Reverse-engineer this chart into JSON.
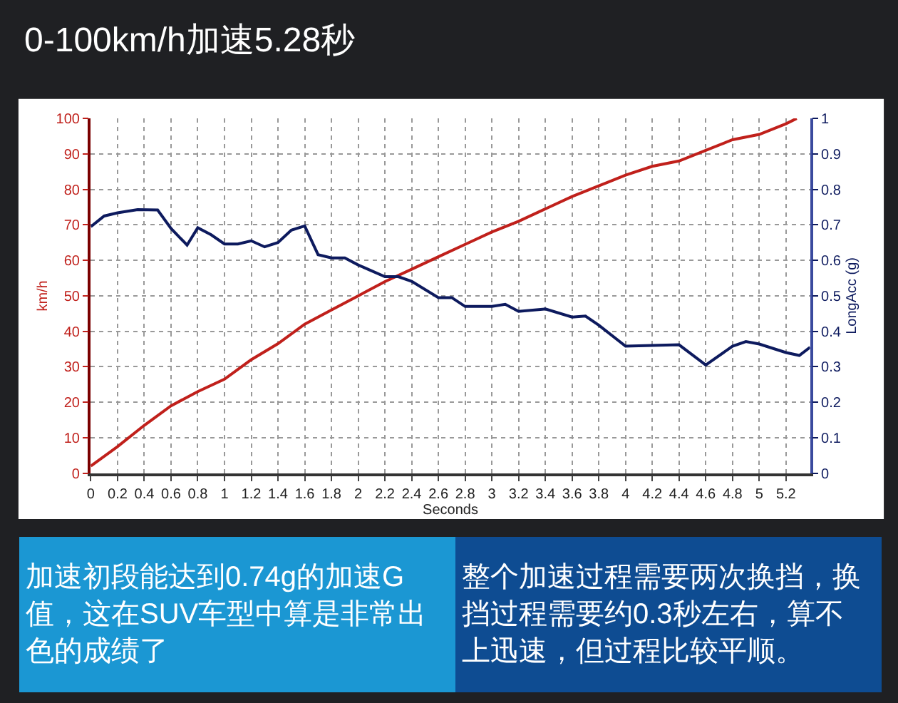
{
  "chart_data": {
    "type": "line",
    "title": "0-100km/h加速5.28秒",
    "xlabel": "Seconds",
    "ylabel": "km/h",
    "y2label": "LongAcc (g)",
    "xlim": [
      0,
      5.38
    ],
    "xticks": [
      0,
      0.2,
      0.4,
      0.6,
      0.8,
      1,
      1.2,
      1.4,
      1.6,
      1.8,
      2,
      2.2,
      2.4,
      2.6,
      2.8,
      3,
      3.2,
      3.4,
      3.6,
      3.8,
      4,
      4.2,
      4.4,
      4.6,
      4.8,
      5,
      5.2
    ],
    "ylim": [
      0,
      100
    ],
    "yticks": [
      0,
      10,
      20,
      30,
      40,
      50,
      60,
      70,
      80,
      90,
      100
    ],
    "y2lim": [
      0,
      1
    ],
    "y2ticks": [
      0,
      0.1,
      0.2,
      0.3,
      0.4,
      0.5,
      0.6,
      0.7,
      0.8,
      0.9,
      1
    ],
    "grid": true,
    "line_style": "solid",
    "marker": "none",
    "series": [
      {
        "color": "#c0201b",
        "x": [
          0,
          0.2,
          0.4,
          0.6,
          0.8,
          1.0,
          1.2,
          1.4,
          1.6,
          1.8,
          2.0,
          2.2,
          2.4,
          2.6,
          2.8,
          3.0,
          3.2,
          3.4,
          3.6,
          3.8,
          4.0,
          4.2,
          4.4,
          4.6,
          4.8,
          5.0,
          5.2,
          5.28
        ],
        "values": [
          2,
          7.5,
          13.5,
          19,
          23,
          26.5,
          32,
          36.5,
          42,
          46,
          50,
          54,
          57.5,
          61,
          64.5,
          68,
          71,
          74.5,
          78,
          81,
          84,
          86.5,
          88,
          91,
          94,
          95.5,
          98.5,
          100
        ]
      },
      {
        "color": "#0d1a5e",
        "axis": "y2",
        "x": [
          0,
          0.1,
          0.2,
          0.35,
          0.5,
          0.6,
          0.72,
          0.8,
          0.9,
          1.0,
          1.1,
          1.2,
          1.3,
          1.4,
          1.5,
          1.6,
          1.7,
          1.8,
          1.9,
          2.0,
          2.2,
          2.3,
          2.4,
          2.6,
          2.7,
          2.8,
          3.0,
          3.1,
          3.2,
          3.4,
          3.6,
          3.7,
          3.8,
          4.0,
          4.2,
          4.4,
          4.6,
          4.8,
          4.9,
          5.0,
          5.2,
          5.3,
          5.38
        ],
        "values": [
          0.695,
          0.725,
          0.734,
          0.743,
          0.742,
          0.69,
          0.643,
          0.692,
          0.672,
          0.646,
          0.646,
          0.655,
          0.638,
          0.65,
          0.685,
          0.697,
          0.616,
          0.607,
          0.607,
          0.587,
          0.554,
          0.554,
          0.541,
          0.495,
          0.495,
          0.47,
          0.47,
          0.476,
          0.456,
          0.463,
          0.44,
          0.443,
          0.417,
          0.358,
          0.36,
          0.362,
          0.305,
          0.358,
          0.371,
          0.364,
          0.34,
          0.332,
          0.355
        ]
      }
    ],
    "annotations": [
      "加速初段能达到0.74g的加速G值，这在SUV车型中算是非常出色的成绩了",
      "整个加速过程需要两次换挡，换挡过程需要约0.3秒左右，算不上迅速，但过程比较平顺。"
    ]
  }
}
